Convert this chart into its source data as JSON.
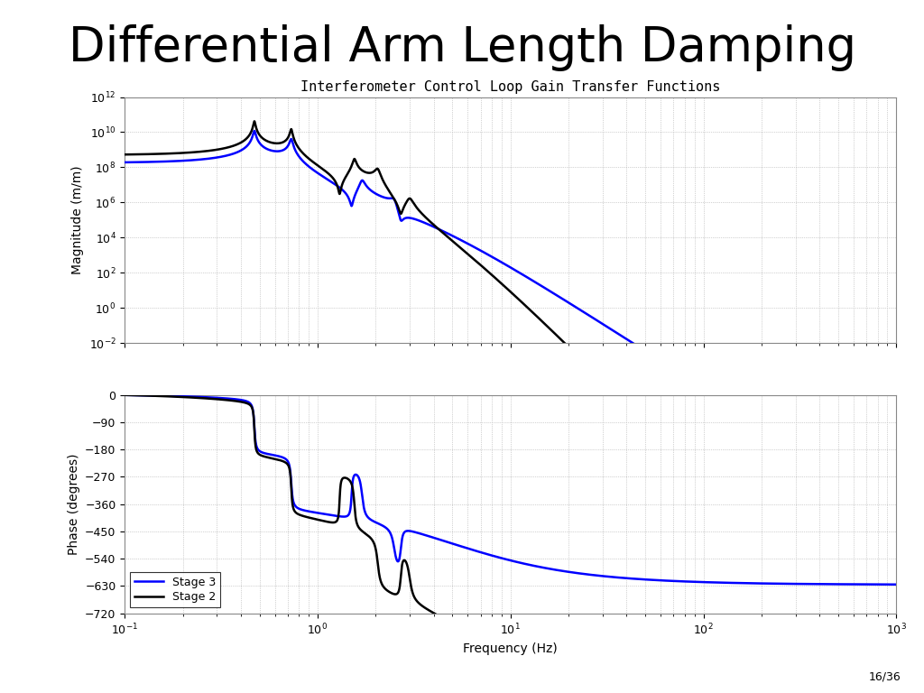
{
  "title": "Differential Arm Length Damping",
  "subplot_title": "Interferometer Control Loop Gain Transfer Functions",
  "xlabel": "Frequency (Hz)",
  "ylabel_mag": "Magnitude (m/m)",
  "ylabel_phase": "Phase (degrees)",
  "legend_stage3": "Stage 3",
  "legend_stage2": "Stage 2",
  "color_stage3": "#0000ff",
  "color_stage2": "#000000",
  "mag_ylim_log": [
    -2,
    12
  ],
  "phase_ylim": [
    -720,
    0
  ],
  "freq_xlim": [
    0.1,
    1000
  ],
  "phase_yticks": [
    0,
    -90,
    -180,
    -270,
    -360,
    -450,
    -540,
    -630,
    -720
  ],
  "background_color": "#ffffff",
  "title_fontsize": 38,
  "subtitle_fontsize": 11,
  "axis_fontsize": 9,
  "label_fontsize": 10,
  "linewidth": 1.8,
  "page_number": "16/36"
}
